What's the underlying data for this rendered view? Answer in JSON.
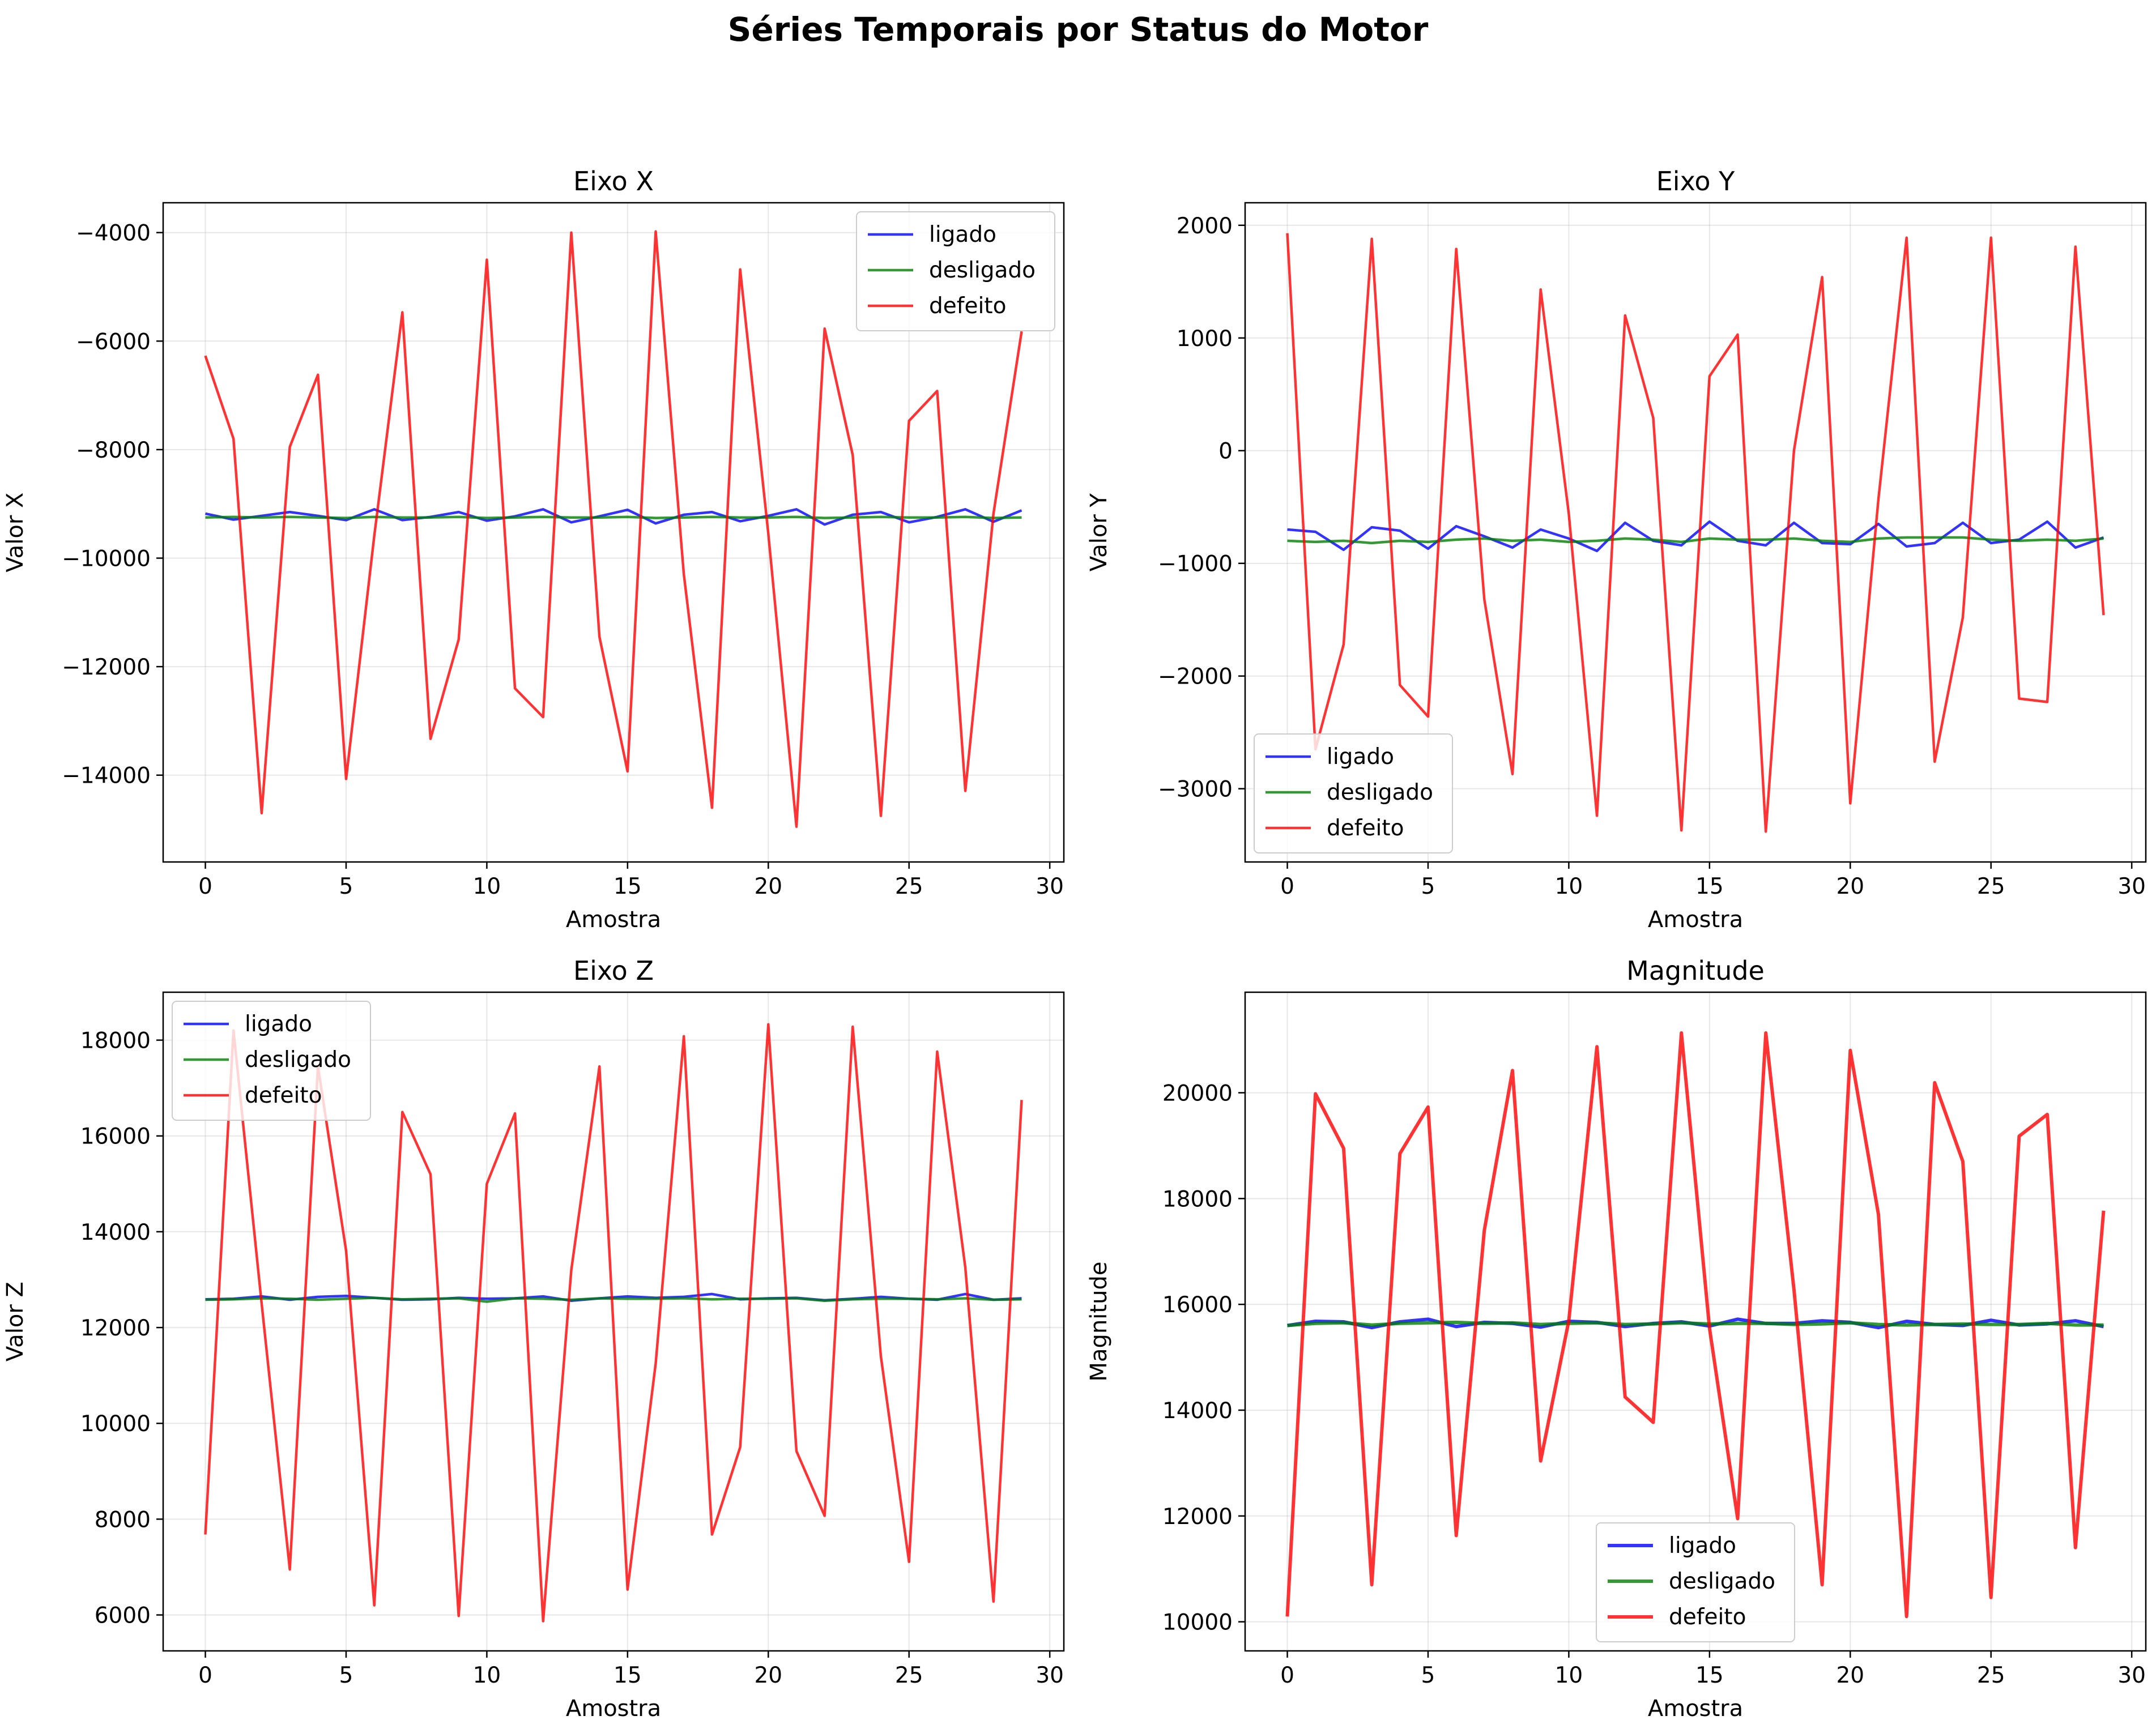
{
  "figure": {
    "suptitle": "Séries Temporais por Status do Motor"
  },
  "colors": {
    "ligado": "#0000ff",
    "desligado": "#008000",
    "defeito": "#ff0000"
  },
  "chart_data": [
    {
      "type": "line",
      "title": "Eixo X",
      "xlabel": "Amostra",
      "ylabel": "Valor X",
      "xlim": [
        -1.5,
        30.5
      ],
      "ylim": [
        -15600,
        -3450
      ],
      "xticks": [
        0,
        5,
        10,
        15,
        20,
        25,
        30
      ],
      "yticks": [
        -14000,
        -12000,
        -10000,
        -8000,
        -6000,
        -4000
      ],
      "ytick_labels": [
        "−14000",
        "−12000",
        "−10000",
        "−8000",
        "−6000",
        "−4000"
      ],
      "grid": true,
      "legend": "top-right",
      "x": [
        0,
        1,
        2,
        3,
        4,
        5,
        6,
        7,
        8,
        9,
        10,
        11,
        12,
        13,
        14,
        15,
        16,
        17,
        18,
        19,
        20,
        21,
        22,
        23,
        24,
        25,
        26,
        27,
        28,
        29
      ],
      "series": [
        {
          "name": "ligado",
          "color": "#0000ff",
          "values": [
            -9180,
            -9290,
            -9220,
            -9150,
            -9220,
            -9300,
            -9100,
            -9300,
            -9240,
            -9150,
            -9310,
            -9230,
            -9100,
            -9340,
            -9230,
            -9110,
            -9360,
            -9200,
            -9150,
            -9320,
            -9220,
            -9100,
            -9380,
            -9200,
            -9150,
            -9340,
            -9240,
            -9100,
            -9330,
            -9120
          ]
        },
        {
          "name": "desligado",
          "color": "#008000",
          "values": [
            -9250,
            -9240,
            -9250,
            -9240,
            -9250,
            -9260,
            -9240,
            -9250,
            -9250,
            -9240,
            -9260,
            -9250,
            -9240,
            -9250,
            -9250,
            -9240,
            -9260,
            -9250,
            -9240,
            -9250,
            -9250,
            -9240,
            -9260,
            -9250,
            -9240,
            -9250,
            -9250,
            -9240,
            -9260,
            -9250
          ]
        },
        {
          "name": "defeito",
          "color": "#ff0000",
          "values": [
            -6270,
            -7800,
            -14700,
            -7950,
            -6620,
            -14070,
            -9590,
            -5470,
            -13330,
            -11500,
            -4500,
            -12400,
            -12930,
            -4000,
            -11450,
            -13930,
            -3980,
            -10300,
            -14600,
            -4680,
            -9550,
            -14950,
            -5770,
            -8100,
            -14750,
            -7470,
            -6920,
            -14290,
            -9180,
            -5820
          ]
        }
      ]
    },
    {
      "type": "line",
      "title": "Eixo Y",
      "xlabel": "Amostra",
      "ylabel": "Valor Y",
      "xlim": [
        -1.5,
        30.5
      ],
      "ylim": [
        -3650,
        2200
      ],
      "xticks": [
        0,
        5,
        10,
        15,
        20,
        25,
        30
      ],
      "yticks": [
        -3000,
        -2000,
        -1000,
        0,
        1000,
        2000
      ],
      "ytick_labels": [
        "−3000",
        "−2000",
        "−1000",
        "0",
        "1000",
        "2000"
      ],
      "grid": true,
      "legend": "bottom-left",
      "x": [
        0,
        1,
        2,
        3,
        4,
        5,
        6,
        7,
        8,
        9,
        10,
        11,
        12,
        13,
        14,
        15,
        16,
        17,
        18,
        19,
        20,
        21,
        22,
        23,
        24,
        25,
        26,
        27,
        28,
        29
      ],
      "series": [
        {
          "name": "ligado",
          "color": "#0000ff",
          "values": [
            -700,
            -720,
            -880,
            -680,
            -710,
            -870,
            -670,
            -760,
            -860,
            -700,
            -780,
            -890,
            -640,
            -800,
            -840,
            -630,
            -800,
            -840,
            -640,
            -820,
            -830,
            -650,
            -850,
            -820,
            -640,
            -820,
            -790,
            -630,
            -860,
            -770
          ]
        },
        {
          "name": "desligado",
          "color": "#008000",
          "values": [
            -800,
            -810,
            -800,
            -820,
            -800,
            -810,
            -790,
            -780,
            -800,
            -790,
            -810,
            -800,
            -780,
            -790,
            -810,
            -780,
            -790,
            -790,
            -780,
            -800,
            -810,
            -780,
            -770,
            -770,
            -770,
            -790,
            -800,
            -790,
            -800,
            -780
          ]
        },
        {
          "name": "defeito",
          "color": "#ff0000",
          "values": [
            1930,
            -2650,
            -1720,
            1880,
            -2080,
            -2360,
            1790,
            -1320,
            -2870,
            1430,
            -560,
            -3240,
            1200,
            290,
            -3370,
            660,
            1030,
            -3380,
            0,
            1540,
            -3130,
            -430,
            1890,
            -2760,
            -1480,
            1890,
            -2200,
            -2230,
            1810,
            -1460
          ]
        }
      ]
    },
    {
      "type": "line",
      "title": "Eixo Z",
      "xlabel": "Amostra",
      "ylabel": "Valor Z",
      "xlim": [
        -1.5,
        30.5
      ],
      "ylim": [
        5250,
        19000
      ],
      "xticks": [
        0,
        5,
        10,
        15,
        20,
        25,
        30
      ],
      "yticks": [
        6000,
        8000,
        10000,
        12000,
        14000,
        16000,
        18000
      ],
      "ytick_labels": [
        "6000",
        "8000",
        "10000",
        "12000",
        "14000",
        "16000",
        "18000"
      ],
      "grid": true,
      "legend": "top-left",
      "x": [
        0,
        1,
        2,
        3,
        4,
        5,
        6,
        7,
        8,
        9,
        10,
        11,
        12,
        13,
        14,
        15,
        16,
        17,
        18,
        19,
        20,
        21,
        22,
        23,
        24,
        25,
        26,
        27,
        28,
        29
      ],
      "series": [
        {
          "name": "ligado",
          "color": "#0000ff",
          "values": [
            12590,
            12600,
            12650,
            12580,
            12640,
            12660,
            12620,
            12580,
            12590,
            12620,
            12600,
            12610,
            12650,
            12560,
            12610,
            12650,
            12620,
            12640,
            12700,
            12590,
            12610,
            12620,
            12570,
            12600,
            12640,
            12600,
            12580,
            12700,
            12580,
            12610
          ]
        },
        {
          "name": "desligado",
          "color": "#008000",
          "values": [
            12580,
            12590,
            12610,
            12600,
            12580,
            12600,
            12620,
            12590,
            12600,
            12610,
            12540,
            12610,
            12600,
            12580,
            12610,
            12600,
            12600,
            12610,
            12590,
            12600,
            12600,
            12610,
            12560,
            12590,
            12600,
            12600,
            12590,
            12610,
            12580,
            12590
          ]
        },
        {
          "name": "defeito",
          "color": "#ff0000",
          "values": [
            7680,
            18200,
            12500,
            6950,
            17450,
            13600,
            6200,
            16500,
            15200,
            5980,
            15000,
            16470,
            5870,
            13200,
            17450,
            6530,
            11250,
            18080,
            7680,
            9500,
            18330,
            9420,
            8070,
            18280,
            11400,
            7110,
            17760,
            13250,
            6280,
            16750
          ]
        }
      ]
    },
    {
      "type": "line",
      "title": "Magnitude",
      "xlabel": "Amostra",
      "ylabel": "Magnitude",
      "xlim": [
        -1.5,
        30.5
      ],
      "ylim": [
        9450,
        21900
      ],
      "xticks": [
        0,
        5,
        10,
        15,
        20,
        25,
        30
      ],
      "yticks": [
        10000,
        12000,
        14000,
        16000,
        18000,
        20000
      ],
      "ytick_labels": [
        "10000",
        "12000",
        "14000",
        "16000",
        "18000",
        "20000"
      ],
      "grid": true,
      "legend": "bottom-center",
      "x": [
        0,
        1,
        2,
        3,
        4,
        5,
        6,
        7,
        8,
        9,
        10,
        11,
        12,
        13,
        14,
        15,
        16,
        17,
        18,
        19,
        20,
        21,
        22,
        23,
        24,
        25,
        26,
        27,
        28,
        29
      ],
      "series": [
        {
          "name": "ligado",
          "color": "#0000ff",
          "values": [
            15600,
            15680,
            15670,
            15560,
            15670,
            15720,
            15580,
            15660,
            15640,
            15570,
            15680,
            15660,
            15580,
            15640,
            15670,
            15590,
            15720,
            15640,
            15640,
            15690,
            15660,
            15560,
            15680,
            15620,
            15600,
            15700,
            15610,
            15630,
            15690,
            15580
          ]
        },
        {
          "name": "desligado",
          "color": "#008000",
          "values": [
            15600,
            15640,
            15650,
            15610,
            15640,
            15650,
            15660,
            15640,
            15650,
            15620,
            15640,
            15650,
            15620,
            15630,
            15650,
            15630,
            15640,
            15640,
            15620,
            15630,
            15650,
            15620,
            15610,
            15620,
            15630,
            15620,
            15620,
            15640,
            15610,
            15610
          ]
        },
        {
          "name": "defeito",
          "color": "#ff0000",
          "values": [
            10100,
            19980,
            18950,
            10700,
            18850,
            19730,
            11630,
            17400,
            20420,
            13040,
            15690,
            20870,
            14250,
            13770,
            21130,
            15550,
            11950,
            21130,
            16280,
            10700,
            20800,
            17700,
            10100,
            20190,
            18700,
            10460,
            19180,
            19590,
            11400,
            17770
          ]
        }
      ]
    }
  ]
}
